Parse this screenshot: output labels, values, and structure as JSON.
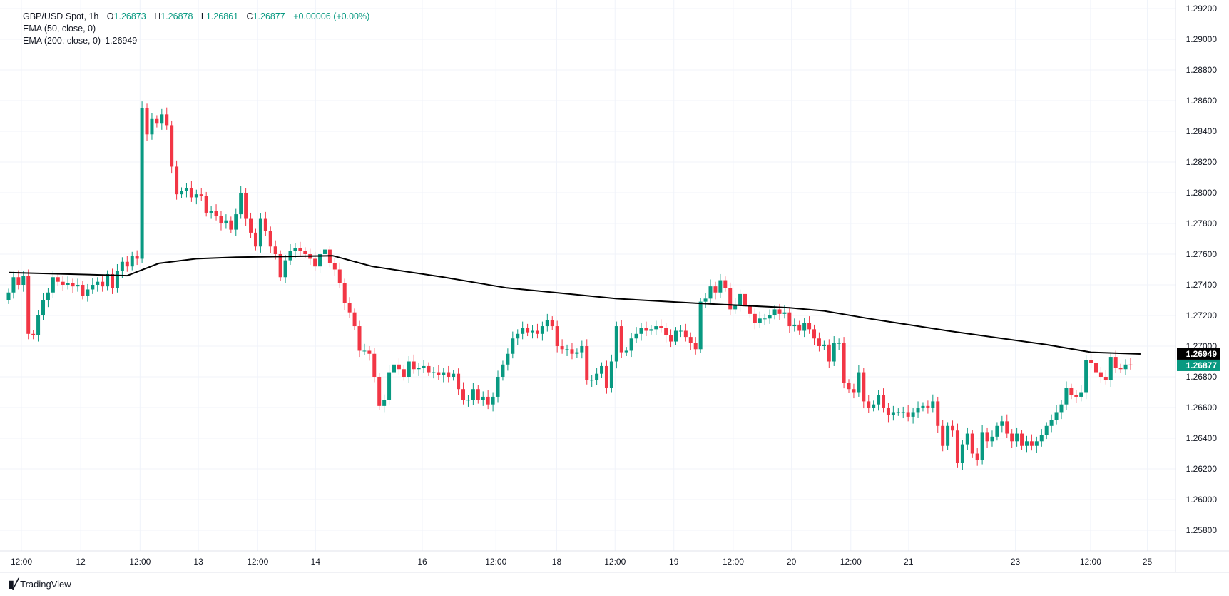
{
  "legend": {
    "symbol": "GBP/USD Spot, 1h",
    "o_label": "O",
    "o": "1.26873",
    "h_label": "H",
    "h": "1.26878",
    "l_label": "L",
    "l": "1.26861",
    "c_label": "C",
    "c": "1.26877",
    "change": "+0.00006 (+0.00%)",
    "ema50": "EMA (50, close, 0)",
    "ema200": "EMA (200, close, 0)",
    "ema200_value": "1.26949"
  },
  "branding": {
    "name": "TradingView"
  },
  "colors": {
    "up": "#089981",
    "down": "#f23645",
    "ema": "#000000",
    "grid": "#f0f3fa"
  },
  "chart_data": {
    "type": "candlestick",
    "title": "GBP/USD Spot, 1h",
    "ylim": [
      1.2572,
      1.2921
    ],
    "yticks": [
      "1.29200",
      "1.29000",
      "1.28800",
      "1.28600",
      "1.28400",
      "1.28200",
      "1.28000",
      "1.27800",
      "1.27600",
      "1.27400",
      "1.27200",
      "1.27000",
      "1.26800",
      "1.26600",
      "1.26400",
      "1.26200",
      "1.26000",
      "1.25800"
    ],
    "xticks": [
      {
        "label": "12:00",
        "index": 2.6
      },
      {
        "label": "12",
        "index": 14.6
      },
      {
        "label": "12:00",
        "index": 26.6
      },
      {
        "label": "13",
        "index": 38.4
      },
      {
        "label": "12:00",
        "index": 50.4
      },
      {
        "label": "14",
        "index": 62.1
      },
      {
        "label": "16",
        "index": 83.7
      },
      {
        "label": "12:00",
        "index": 98.6
      },
      {
        "label": "18",
        "index": 110.9
      },
      {
        "label": "12:00",
        "index": 122.7
      },
      {
        "label": "19",
        "index": 134.6
      },
      {
        "label": "12:00",
        "index": 146.6
      },
      {
        "label": "20",
        "index": 158.4
      },
      {
        "label": "12:00",
        "index": 170.4
      },
      {
        "label": "21",
        "index": 182.1
      },
      {
        "label": "23",
        "index": 203.7
      },
      {
        "label": "12:00",
        "index": 218.9
      },
      {
        "label": "25",
        "index": 230.4
      }
    ],
    "first_open": 1.273,
    "closes": [
      1.2735,
      1.2745,
      1.274,
      1.2746,
      1.2708,
      1.2707,
      1.272,
      1.273,
      1.2735,
      1.2745,
      1.2742,
      1.274,
      1.2741,
      1.2739,
      1.274,
      1.2733,
      1.2737,
      1.274,
      1.2742,
      1.2739,
      1.2747,
      1.2738,
      1.2749,
      1.2755,
      1.2752,
      1.2759,
      1.2757,
      1.2855,
      1.2838,
      1.2848,
      1.2845,
      1.2851,
      1.2844,
      1.2817,
      1.2799,
      1.2801,
      1.2803,
      1.2797,
      1.2799,
      1.2798,
      1.2787,
      1.2788,
      1.2785,
      1.278,
      1.2782,
      1.2776,
      1.2786,
      1.28,
      1.2783,
      1.2774,
      1.2765,
      1.2783,
      1.2775,
      1.2765,
      1.276,
      1.2745,
      1.2756,
      1.2762,
      1.2764,
      1.2762,
      1.276,
      1.2757,
      1.2752,
      1.276,
      1.2763,
      1.2754,
      1.275,
      1.2741,
      1.2728,
      1.2722,
      1.2713,
      1.2697,
      1.2697,
      1.2695,
      1.268,
      1.2661,
      1.2665,
      1.2683,
      1.2688,
      1.2685,
      1.268,
      1.269,
      1.2685,
      1.2686,
      1.2687,
      1.2683,
      1.2683,
      1.2681,
      1.2683,
      1.268,
      1.2682,
      1.2672,
      1.2665,
      1.2665,
      1.2672,
      1.2665,
      1.2667,
      1.2662,
      1.2667,
      1.268,
      1.2688,
      1.2695,
      1.2705,
      1.2708,
      1.2712,
      1.2709,
      1.271,
      1.2708,
      1.2713,
      1.2717,
      1.2713,
      1.27,
      1.2698,
      1.2698,
      1.2695,
      1.2696,
      1.27,
      1.2678,
      1.2678,
      1.2682,
      1.2687,
      1.2673,
      1.269,
      1.2713,
      1.2696,
      1.2697,
      1.2705,
      1.2708,
      1.2712,
      1.271,
      1.2711,
      1.2713,
      1.2712,
      1.2707,
      1.2703,
      1.271,
      1.271,
      1.2706,
      1.2702,
      1.2698,
      1.2729,
      1.2731,
      1.2739,
      1.2735,
      1.2743,
      1.2738,
      1.2724,
      1.2727,
      1.2734,
      1.2726,
      1.2721,
      1.2715,
      1.2718,
      1.2718,
      1.272,
      1.2724,
      1.2721,
      1.2722,
      1.2713,
      1.2714,
      1.271,
      1.2715,
      1.2711,
      1.2705,
      1.27,
      1.2701,
      1.269,
      1.2702,
      1.2702,
      1.2676,
      1.2672,
      1.267,
      1.2683,
      1.2664,
      1.266,
      1.2662,
      1.2668,
      1.266,
      1.2655,
      1.2657,
      1.2657,
      1.2657,
      1.2654,
      1.2657,
      1.266,
      1.2661,
      1.266,
      1.2664,
      1.2648,
      1.2635,
      1.2648,
      1.2645,
      1.2624,
      1.2636,
      1.2643,
      1.263,
      1.2626,
      1.2644,
      1.2638,
      1.2641,
      1.2648,
      1.2651,
      1.2643,
      1.2638,
      1.2643,
      1.2635,
      1.2638,
      1.2635,
      1.2638,
      1.2642,
      1.2648,
      1.2652,
      1.2657,
      1.2662,
      1.2673,
      1.2668,
      1.2667,
      1.267,
      1.2691,
      1.2689,
      1.2683,
      1.268,
      1.2678,
      1.2693,
      1.2686,
      1.2685,
      1.2688,
      1.26877
    ],
    "ema200": [
      [
        0,
        1.2748
      ],
      [
        24,
        1.2746
      ],
      [
        30.4,
        1.2754
      ],
      [
        38,
        1.2757
      ],
      [
        46,
        1.2758
      ],
      [
        65.6,
        1.2759
      ],
      [
        73.6,
        1.2752
      ],
      [
        88,
        1.2745
      ],
      [
        100.8,
        1.2738
      ],
      [
        110.4,
        1.2735
      ],
      [
        123,
        1.2731
      ],
      [
        139,
        1.2728
      ],
      [
        158,
        1.2725
      ],
      [
        165,
        1.2723
      ],
      [
        174,
        1.2718
      ],
      [
        190,
        1.271
      ],
      [
        210,
        1.2701
      ],
      [
        219,
        1.2696
      ],
      [
        229,
        1.26949
      ]
    ],
    "last_price": "1.26877",
    "ema200_last": "1.26949"
  }
}
